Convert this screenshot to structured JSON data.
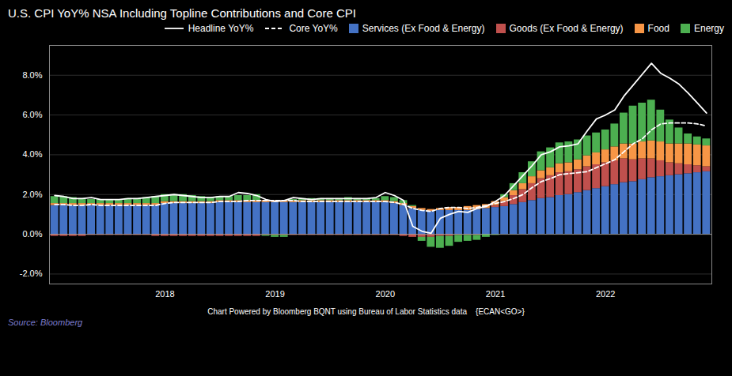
{
  "chart_data": {
    "type": "bar",
    "title": "U.S. CPI YoY% NSA Including Topline Contributions and Core CPI",
    "caption": "Chart Powered by Bloomberg BQNT using Bureau of Labor Statistics data    {ECAN<GO>}",
    "source": "Source: Bloomberg",
    "stacked": true,
    "grid": true,
    "legend": "upper right",
    "categories": [
      null,
      null,
      null,
      null,
      null,
      null,
      null,
      null,
      null,
      null,
      null,
      null,
      "2018",
      null,
      null,
      null,
      null,
      null,
      null,
      null,
      null,
      null,
      null,
      null,
      "2019",
      null,
      null,
      null,
      null,
      null,
      null,
      null,
      null,
      null,
      null,
      null,
      "2020",
      null,
      null,
      null,
      null,
      null,
      null,
      null,
      null,
      null,
      null,
      null,
      "2021",
      null,
      null,
      null,
      null,
      null,
      null,
      null,
      null,
      null,
      null,
      null,
      "2022",
      null,
      null,
      null,
      null,
      null,
      null,
      null,
      null,
      null,
      null,
      null
    ],
    "ylim": [
      -2.5,
      9.5
    ],
    "yticks": [
      {
        "value": -2.0,
        "label": "-2.0%"
      },
      {
        "value": 0.0,
        "label": "0.0%"
      },
      {
        "value": 2.0,
        "label": "2.0%"
      },
      {
        "value": 4.0,
        "label": "4.0%"
      },
      {
        "value": 6.0,
        "label": "6.0%"
      },
      {
        "value": 8.0,
        "label": "8.0%"
      }
    ],
    "series": [
      {
        "name": "Headline YoY%",
        "type": "line",
        "color": "#ffffff",
        "line_style": "solid",
        "values": [
          1.95,
          1.9,
          1.8,
          1.8,
          1.85,
          1.75,
          1.75,
          1.75,
          1.8,
          1.8,
          1.85,
          1.9,
          1.95,
          2.0,
          1.95,
          1.9,
          1.85,
          1.85,
          1.9,
          1.9,
          2.1,
          2.05,
          1.95,
          1.75,
          1.65,
          1.7,
          1.85,
          1.8,
          1.75,
          1.8,
          1.8,
          1.8,
          1.8,
          1.8,
          1.8,
          1.85,
          2.1,
          1.95,
          1.7,
          0.4,
          0.15,
          0.05,
          0.8,
          1.0,
          1.15,
          1.1,
          1.3,
          1.4,
          1.65,
          1.95,
          2.45,
          2.95,
          3.45,
          4.0,
          4.15,
          4.4,
          4.45,
          4.55,
          5.2,
          5.8,
          6.0,
          6.25,
          6.95,
          7.5,
          8.05,
          8.6,
          8.1,
          7.85,
          7.55,
          7.1,
          6.6,
          6.1
        ]
      },
      {
        "name": "Core YoY%",
        "type": "line",
        "color": "#ffffff",
        "line_style": "dashed",
        "values": [
          1.5,
          1.5,
          1.45,
          1.45,
          1.5,
          1.45,
          1.45,
          1.45,
          1.45,
          1.45,
          1.45,
          1.45,
          1.55,
          1.6,
          1.6,
          1.6,
          1.6,
          1.6,
          1.65,
          1.65,
          1.65,
          1.7,
          1.7,
          1.7,
          1.7,
          1.7,
          1.7,
          1.65,
          1.65,
          1.65,
          1.65,
          1.65,
          1.65,
          1.65,
          1.65,
          1.65,
          1.65,
          1.6,
          1.5,
          1.3,
          1.2,
          1.15,
          1.3,
          1.35,
          1.35,
          1.3,
          1.35,
          1.45,
          1.55,
          1.65,
          1.8,
          2.0,
          2.35,
          2.65,
          2.8,
          3.0,
          3.05,
          3.1,
          3.15,
          3.35,
          3.55,
          3.75,
          4.15,
          4.55,
          4.8,
          5.25,
          5.55,
          5.6,
          5.6,
          5.6,
          5.55,
          5.45
        ]
      },
      {
        "name": "Services (Ex Food & Energy)",
        "type": "bar",
        "color": "#4472c4",
        "values": [
          1.45,
          1.45,
          1.45,
          1.45,
          1.45,
          1.45,
          1.45,
          1.45,
          1.45,
          1.45,
          1.45,
          1.45,
          1.55,
          1.55,
          1.55,
          1.55,
          1.55,
          1.55,
          1.6,
          1.6,
          1.6,
          1.6,
          1.6,
          1.6,
          1.6,
          1.6,
          1.6,
          1.6,
          1.6,
          1.6,
          1.6,
          1.6,
          1.6,
          1.6,
          1.6,
          1.6,
          1.6,
          1.55,
          1.45,
          1.3,
          1.2,
          1.15,
          1.2,
          1.2,
          1.2,
          1.2,
          1.25,
          1.3,
          1.35,
          1.4,
          1.5,
          1.6,
          1.7,
          1.8,
          1.85,
          1.95,
          2.0,
          2.1,
          2.2,
          2.3,
          2.4,
          2.5,
          2.6,
          2.65,
          2.75,
          2.85,
          2.9,
          2.95,
          3.0,
          3.05,
          3.1,
          3.15
        ]
      },
      {
        "name": "Goods (Ex Food & Energy)",
        "type": "bar",
        "color": "#c0504d",
        "values": [
          -0.1,
          -0.1,
          -0.1,
          -0.1,
          -0.05,
          -0.05,
          -0.05,
          -0.05,
          -0.05,
          -0.05,
          -0.05,
          -0.1,
          -0.1,
          -0.1,
          -0.1,
          -0.1,
          -0.1,
          -0.1,
          -0.1,
          -0.1,
          -0.1,
          -0.1,
          -0.1,
          -0.05,
          -0.05,
          -0.05,
          -0.05,
          -0.05,
          -0.05,
          -0.05,
          -0.05,
          -0.05,
          -0.05,
          -0.05,
          -0.05,
          -0.05,
          -0.05,
          -0.05,
          -0.1,
          -0.15,
          -0.15,
          -0.15,
          -0.1,
          -0.1,
          -0.05,
          -0.05,
          -0.05,
          0.0,
          0.1,
          0.25,
          0.45,
          0.65,
          0.85,
          1.0,
          1.1,
          1.15,
          1.15,
          1.15,
          1.2,
          1.2,
          1.2,
          1.2,
          1.2,
          1.1,
          1.05,
          0.95,
          0.8,
          0.65,
          0.55,
          0.45,
          0.35,
          0.25
        ]
      },
      {
        "name": "Food",
        "type": "bar",
        "color": "#f79646",
        "values": [
          0.1,
          0.1,
          0.1,
          0.1,
          0.1,
          0.1,
          0.1,
          0.1,
          0.1,
          0.1,
          0.1,
          0.1,
          0.1,
          0.1,
          0.1,
          0.1,
          0.1,
          0.1,
          0.1,
          0.1,
          0.1,
          0.1,
          0.1,
          0.1,
          0.1,
          0.1,
          0.1,
          0.1,
          0.1,
          0.1,
          0.1,
          0.1,
          0.1,
          0.1,
          0.1,
          0.1,
          0.1,
          0.1,
          0.1,
          0.1,
          0.1,
          0.1,
          0.1,
          0.15,
          0.15,
          0.2,
          0.2,
          0.2,
          0.2,
          0.2,
          0.25,
          0.3,
          0.35,
          0.4,
          0.4,
          0.45,
          0.45,
          0.5,
          0.55,
          0.6,
          0.65,
          0.7,
          0.75,
          0.8,
          0.85,
          0.9,
          0.95,
          0.95,
          1.0,
          1.05,
          1.05,
          1.05
        ]
      },
      {
        "name": "Energy",
        "type": "bar",
        "color": "#4caf50",
        "values": [
          0.35,
          0.35,
          0.3,
          0.25,
          0.2,
          0.2,
          0.2,
          0.2,
          0.25,
          0.25,
          0.3,
          0.35,
          0.35,
          0.35,
          0.35,
          0.3,
          0.25,
          0.2,
          0.2,
          0.2,
          0.25,
          0.25,
          0.3,
          -0.05,
          -0.1,
          -0.1,
          0.05,
          0.1,
          0.1,
          0.1,
          0.1,
          0.1,
          0.15,
          0.1,
          0.1,
          0.1,
          0.2,
          0.2,
          0.15,
          0.05,
          -0.2,
          -0.5,
          -0.6,
          -0.5,
          -0.35,
          -0.3,
          -0.25,
          -0.15,
          -0.05,
          0.15,
          0.35,
          0.55,
          0.75,
          0.95,
          1.0,
          1.05,
          1.05,
          1.0,
          1.0,
          1.0,
          1.0,
          1.15,
          1.55,
          1.9,
          1.95,
          2.05,
          1.6,
          1.2,
          0.8,
          0.5,
          0.4,
          0.35
        ]
      }
    ]
  }
}
